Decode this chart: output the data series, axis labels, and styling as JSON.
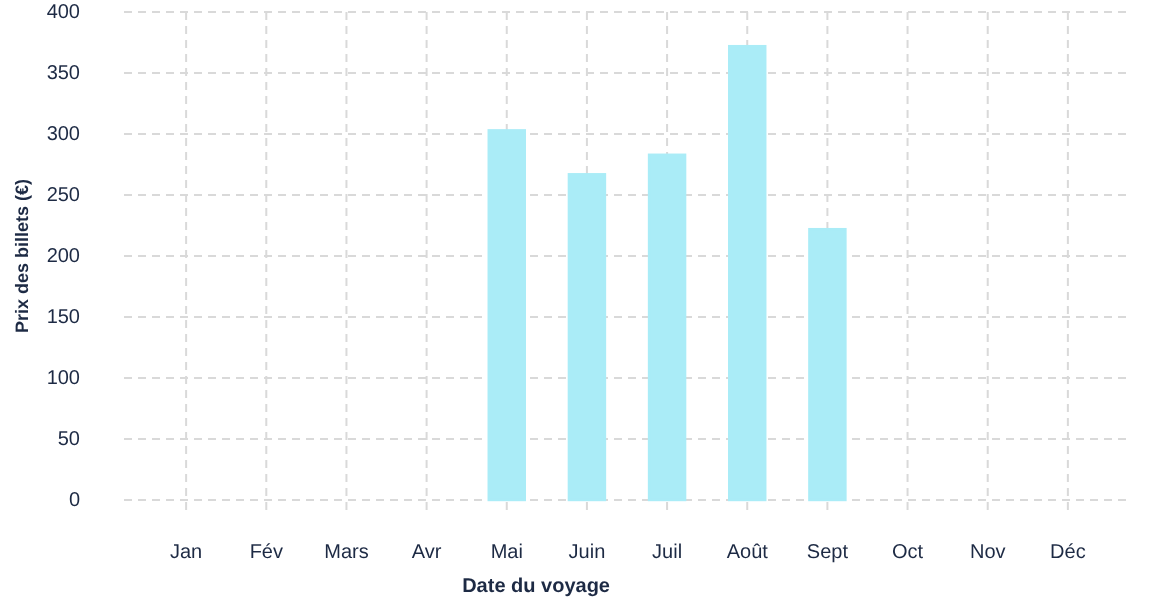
{
  "chart_data": {
    "type": "bar",
    "xlabel": "Date du voyage",
    "ylabel": "Prix des billets (€)",
    "categories": [
      "Jan",
      "Fév",
      "Mars",
      "Avr",
      "Mai",
      "Juin",
      "Juil",
      "Août",
      "Sept",
      "Oct",
      "Nov",
      "Déc"
    ],
    "values": [
      0,
      0,
      0,
      0,
      303,
      267,
      283,
      372,
      222,
      0,
      0,
      0
    ],
    "color": "#aaecf7",
    "ylim": [
      0,
      400
    ],
    "yticks": [
      0,
      50,
      100,
      150,
      200,
      250,
      300,
      350,
      400
    ],
    "grid": true
  }
}
